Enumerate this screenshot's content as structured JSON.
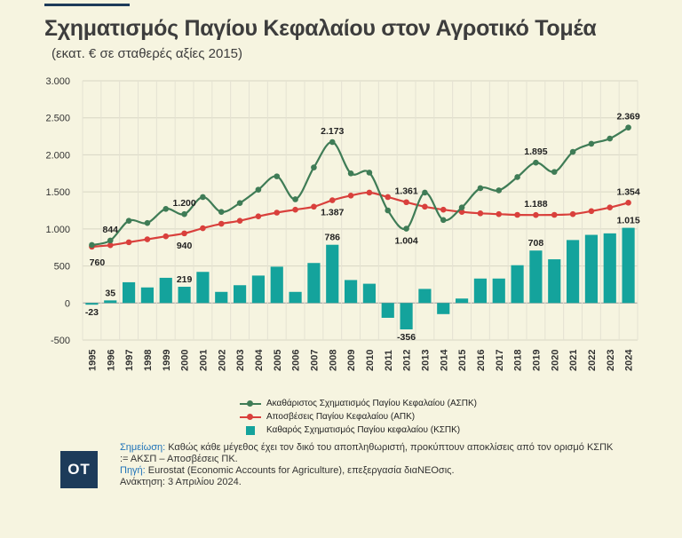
{
  "title": "Σχηματισμός Παγίου Κεφαλαίου στον Αγροτικό Τομέα",
  "subtitle": "(εκατ. € σε σταθερές αξίες 2015)",
  "chart_data": {
    "type": "bar+line",
    "categories": [
      "1995",
      "1996",
      "1997",
      "1998",
      "1999",
      "2000",
      "2001",
      "2002",
      "2003",
      "2004",
      "2005",
      "2006",
      "2007",
      "2008",
      "2009",
      "2010",
      "2011",
      "2012",
      "2013",
      "2014",
      "2015",
      "2016",
      "2017",
      "2018",
      "2019",
      "2020",
      "2021",
      "2022",
      "2023",
      "2024"
    ],
    "ylim": [
      -500,
      3000
    ],
    "yticks": [
      -500,
      0,
      500,
      1000,
      1500,
      2000,
      2500,
      3000
    ],
    "ytick_labels": [
      "-500",
      "0",
      "500",
      "1.000",
      "1.500",
      "2.000",
      "2.500",
      "3.000"
    ],
    "grid": true,
    "series": [
      {
        "name": "Ακαθάριστος Σχηματισμός Παγίου Κεφαλαίου (ΑΣΠΚ)",
        "type": "line",
        "color": "#3f7c56",
        "values": [
          783,
          844,
          1110,
          1080,
          1270,
          1200,
          1430,
          1230,
          1350,
          1530,
          1710,
          1400,
          1830,
          2173,
          1750,
          1760,
          1250,
          1004,
          1490,
          1120,
          1290,
          1550,
          1520,
          1700,
          1895,
          1770,
          2040,
          2150,
          2220,
          2369
        ]
      },
      {
        "name": "Αποσβέσεις Παγίου Κεφαλαίου (ΑΠΚ)",
        "type": "line",
        "color": "#d9403c",
        "values": [
          760,
          780,
          820,
          860,
          900,
          940,
          1010,
          1070,
          1110,
          1170,
          1220,
          1260,
          1300,
          1387,
          1450,
          1490,
          1430,
          1361,
          1300,
          1260,
          1230,
          1210,
          1200,
          1190,
          1188,
          1190,
          1200,
          1240,
          1290,
          1354
        ]
      },
      {
        "name": "Καθαρός Σχηματισμός Παγίου κεφαλαίου (ΚΣΠΚ)",
        "type": "bar",
        "color": "#14a39c",
        "values": [
          -23,
          35,
          280,
          210,
          340,
          219,
          420,
          150,
          240,
          370,
          490,
          150,
          540,
          786,
          310,
          260,
          -200,
          -356,
          190,
          -150,
          60,
          330,
          330,
          510,
          708,
          590,
          850,
          920,
          940,
          1015
        ]
      }
    ],
    "data_labels": [
      {
        "series": 0,
        "index": 1,
        "text": "844",
        "pos": "above"
      },
      {
        "series": 0,
        "index": 5,
        "text": "1.200",
        "pos": "above"
      },
      {
        "series": 0,
        "index": 13,
        "text": "2.173",
        "pos": "above"
      },
      {
        "series": 0,
        "index": 17,
        "text": "1.004",
        "pos": "below"
      },
      {
        "series": 0,
        "index": 24,
        "text": "1.895",
        "pos": "above"
      },
      {
        "series": 0,
        "index": 29,
        "text": "2.369",
        "pos": "above"
      },
      {
        "series": 1,
        "index": 0,
        "text": "760",
        "pos": "below-right"
      },
      {
        "series": 1,
        "index": 5,
        "text": "940",
        "pos": "below"
      },
      {
        "series": 1,
        "index": 13,
        "text": "1.387",
        "pos": "below"
      },
      {
        "series": 1,
        "index": 17,
        "text": "1.361",
        "pos": "above"
      },
      {
        "series": 1,
        "index": 24,
        "text": "1.188",
        "pos": "above"
      },
      {
        "series": 1,
        "index": 29,
        "text": "1.354",
        "pos": "above"
      },
      {
        "series": 2,
        "index": 0,
        "text": "-23",
        "pos": "below"
      },
      {
        "series": 2,
        "index": 1,
        "text": "35",
        "pos": "above"
      },
      {
        "series": 2,
        "index": 5,
        "text": "219",
        "pos": "above"
      },
      {
        "series": 2,
        "index": 13,
        "text": "786",
        "pos": "above"
      },
      {
        "series": 2,
        "index": 17,
        "text": "-356",
        "pos": "below"
      },
      {
        "series": 2,
        "index": 24,
        "text": "708",
        "pos": "above"
      },
      {
        "series": 2,
        "index": 29,
        "text": "1.015",
        "pos": "above"
      }
    ],
    "legend": {
      "placement": "bottom-center"
    }
  },
  "logo": {
    "text": "OT"
  },
  "notes": {
    "note_label": "Σημείωση:",
    "note_text": " Καθώς κάθε μέγεθος έχει τον δικό του αποπληθωριστή, προκύπτουν αποκλίσεις από τον ορισμό ΚΣΠΚ := ΑΚΣΠ – Αποσβέσεις ΠΚ.",
    "source_label": "Πηγή:",
    "source_text": " Eurostat (Economic Accounts for Agriculture), επεξεργασία διαNEOσις.",
    "retrieved": "Ανάκτηση: 3 Απριλίου 2024."
  }
}
